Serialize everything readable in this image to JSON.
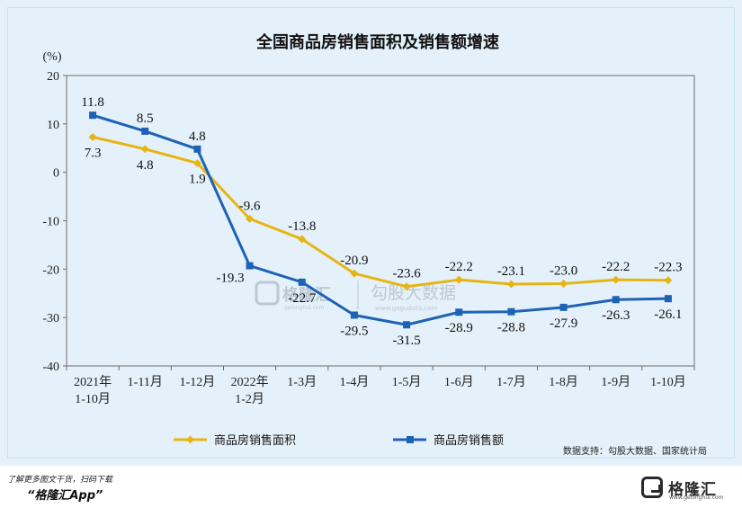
{
  "chart_data": {
    "type": "line",
    "title": "全国商品房销售面积及销售额增速",
    "ylabel": "(%)",
    "ylim": [
      -40,
      20
    ],
    "yticks": [
      20,
      10,
      0,
      -10,
      -20,
      -30,
      -40
    ],
    "categories": [
      [
        "2021年",
        "1-10月"
      ],
      [
        "1-11月"
      ],
      [
        "1-12月"
      ],
      [
        "2022年",
        "1-2月"
      ],
      [
        "1-3月"
      ],
      [
        "1-4月"
      ],
      [
        "1-5月"
      ],
      [
        "1-6月"
      ],
      [
        "1-7月"
      ],
      [
        "1-8月"
      ],
      [
        "1-9月"
      ],
      [
        "1-10月"
      ]
    ],
    "series": [
      {
        "name": "商品房销售面积",
        "color": "#e7b512",
        "marker": "diamond",
        "values": [
          7.3,
          4.8,
          1.9,
          -9.6,
          -13.8,
          -20.9,
          -23.6,
          -22.2,
          -23.1,
          -23.0,
          -22.2,
          -22.3
        ],
        "labels": [
          "7.3",
          "4.8",
          "1.9",
          "-9.6",
          "-13.8",
          "-20.9",
          "-23.6",
          "-22.2",
          "-23.1",
          "-23.0",
          "-22.2",
          "-22.3"
        ],
        "label_pos": [
          "below",
          "below",
          "below",
          "above",
          "above",
          "above",
          "above",
          "above",
          "above",
          "above",
          "above",
          "above"
        ]
      },
      {
        "name": "商品房销售额",
        "color": "#1e62b5",
        "marker": "square",
        "values": [
          11.8,
          8.5,
          4.8,
          -19.3,
          -22.7,
          -29.5,
          -31.5,
          -28.9,
          -28.8,
          -27.9,
          -26.3,
          -26.1
        ],
        "labels": [
          "11.8",
          "8.5",
          "4.8",
          "-19.3",
          "-22.7",
          "-29.5",
          "-31.5",
          "-28.9",
          "-28.8",
          "-27.9",
          "-26.3",
          "-26.1"
        ],
        "label_pos": [
          "above",
          "above",
          "above",
          "below-left",
          "below",
          "below",
          "below",
          "below",
          "below",
          "below",
          "below",
          "below"
        ]
      }
    ],
    "source": "数据支持：勾股大数据、国家统计局",
    "watermark": {
      "brand": "格隆汇",
      "brand_domain": "gelonghui.com",
      "data_brand": "勾股大数据",
      "data_domain": "www.gogudata.com"
    }
  },
  "footer": {
    "line1": "了解更多图文干货，扫码下载",
    "line2": "“格隆汇App”",
    "brand_name": "格隆汇",
    "brand_domain": "www.gelonghui.com"
  }
}
